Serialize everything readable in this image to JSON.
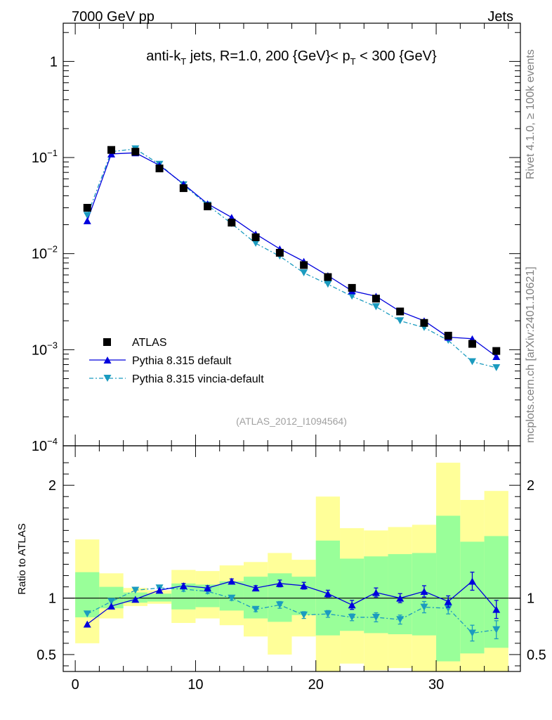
{
  "header": {
    "left": "7000 GeV pp",
    "right": "Jets"
  },
  "side": {
    "rivet": "Rivet 4.1.0, ≥ 100k events",
    "mcplots": "mcplots.cern.ch [arXiv:2401.10621]"
  },
  "colors": {
    "atlas": "#000000",
    "default": "#0000dd",
    "vincia": "#1b9bbf",
    "band_yellow": "#ffff99",
    "band_green": "#99ff99"
  },
  "chart_data": [
    {
      "type": "scatter",
      "yscale": "log",
      "title_parts": {
        "pre": "anti-k",
        "sub": "T",
        "mid": " jets, R=1.0, 200 {GeV}< p",
        "sub2": "T",
        "post": " < 300 {GeV}"
      },
      "analysis_label": "(ATLAS_2012_I1094564)",
      "xlim": [
        -1,
        37
      ],
      "ylim": [
        0.0001,
        2.5
      ],
      "ytick_labels": [
        {
          "base": "1",
          "exp": ""
        },
        {
          "base": "10",
          "exp": "−1"
        },
        {
          "base": "10",
          "exp": "−2"
        },
        {
          "base": "10",
          "exp": "−3"
        },
        {
          "base": "10",
          "exp": "−4"
        }
      ],
      "legend": [
        {
          "label": "ATLAS",
          "marker": "square"
        },
        {
          "label": "Pythia 8.315 default",
          "marker": "triangle-up"
        },
        {
          "label": "Pythia 8.315 vincia-default",
          "marker": "triangle-down"
        }
      ],
      "x": [
        1,
        3,
        5,
        7,
        9,
        11,
        13,
        15,
        17,
        19,
        21,
        23,
        25,
        27,
        29,
        31,
        33,
        35
      ],
      "series": [
        {
          "name": "ATLAS",
          "values": [
            0.03,
            0.12,
            0.115,
            0.077,
            0.048,
            0.031,
            0.021,
            0.0148,
            0.0102,
            0.0076,
            0.0057,
            0.0044,
            0.0034,
            0.0025,
            0.0019,
            0.0014,
            0.00115,
            0.00097
          ]
        },
        {
          "name": "Pythia 8.315 default",
          "values": [
            0.022,
            0.109,
            0.112,
            0.083,
            0.053,
            0.033,
            0.0238,
            0.016,
            0.0112,
            0.0083,
            0.0059,
            0.0041,
            0.0036,
            0.0025,
            0.002,
            0.00135,
            0.0013,
            0.00085
          ]
        },
        {
          "name": "Pythia 8.315 vincia-default",
          "values": [
            0.025,
            0.115,
            0.123,
            0.085,
            0.052,
            0.032,
            0.0205,
            0.0128,
            0.0094,
            0.0063,
            0.0048,
            0.0036,
            0.0028,
            0.002,
            0.0017,
            0.00125,
            0.00075,
            0.00065
          ]
        }
      ]
    },
    {
      "type": "scatter",
      "ylabel": "Ratio to ATLAS",
      "xlim": [
        -1,
        37
      ],
      "ylim": [
        0.35,
        2.35
      ],
      "ytick_labels": [
        "0.5",
        "1",
        "2"
      ],
      "xtick_labels": [
        "0",
        "10",
        "20",
        "30"
      ],
      "x": [
        1,
        3,
        5,
        7,
        9,
        11,
        13,
        15,
        17,
        19,
        21,
        23,
        25,
        27,
        29,
        31,
        33,
        35
      ],
      "band_yellow": [
        [
          0.6,
          1.52
        ],
        [
          0.82,
          1.22
        ],
        [
          0.93,
          1.09
        ],
        [
          0.95,
          1.07
        ],
        [
          0.78,
          1.25
        ],
        [
          0.82,
          1.24
        ],
        [
          0.76,
          1.29
        ],
        [
          0.66,
          1.32
        ],
        [
          0.5,
          1.4
        ],
        [
          0.66,
          1.34
        ],
        [
          0.3,
          1.9
        ],
        [
          0.42,
          1.62
        ],
        [
          0.36,
          1.6
        ],
        [
          0.38,
          1.63
        ],
        [
          0.33,
          1.65
        ],
        [
          0.3,
          2.2
        ],
        [
          0.3,
          1.87
        ],
        [
          0.3,
          1.95
        ]
      ],
      "band_green": [
        [
          0.83,
          1.23
        ],
        [
          0.91,
          1.1
        ],
        [
          0.96,
          1.05
        ],
        [
          0.97,
          1.04
        ],
        [
          0.9,
          1.13
        ],
        [
          0.92,
          1.12
        ],
        [
          0.89,
          1.15
        ],
        [
          0.82,
          1.19
        ],
        [
          0.79,
          1.22
        ],
        [
          0.85,
          1.19
        ],
        [
          0.67,
          1.51
        ],
        [
          0.71,
          1.35
        ],
        [
          0.69,
          1.37
        ],
        [
          0.68,
          1.39
        ],
        [
          0.67,
          1.4
        ],
        [
          0.44,
          1.73
        ],
        [
          0.51,
          1.5
        ],
        [
          0.56,
          1.55
        ]
      ],
      "series": [
        {
          "name": "Pythia 8.315 default",
          "values": [
            0.77,
            0.93,
            0.99,
            1.07,
            1.11,
            1.09,
            1.15,
            1.09,
            1.13,
            1.11,
            1.04,
            0.94,
            1.05,
            1.0,
            1.06,
            0.97,
            1.15,
            0.9
          ],
          "err": [
            0.01,
            0.01,
            0.01,
            0.01,
            0.02,
            0.02,
            0.02,
            0.02,
            0.03,
            0.03,
            0.03,
            0.04,
            0.04,
            0.04,
            0.05,
            0.05,
            0.08,
            0.08
          ]
        },
        {
          "name": "Pythia 8.315 vincia-default",
          "values": [
            0.86,
            0.97,
            1.07,
            1.09,
            1.08,
            1.06,
            1.0,
            0.9,
            0.94,
            0.85,
            0.86,
            0.83,
            0.83,
            0.81,
            0.92,
            0.91,
            0.69,
            0.72
          ],
          "err": [
            0.01,
            0.01,
            0.01,
            0.01,
            0.02,
            0.02,
            0.02,
            0.02,
            0.03,
            0.03,
            0.03,
            0.03,
            0.04,
            0.04,
            0.05,
            0.05,
            0.07,
            0.08
          ]
        }
      ]
    }
  ]
}
